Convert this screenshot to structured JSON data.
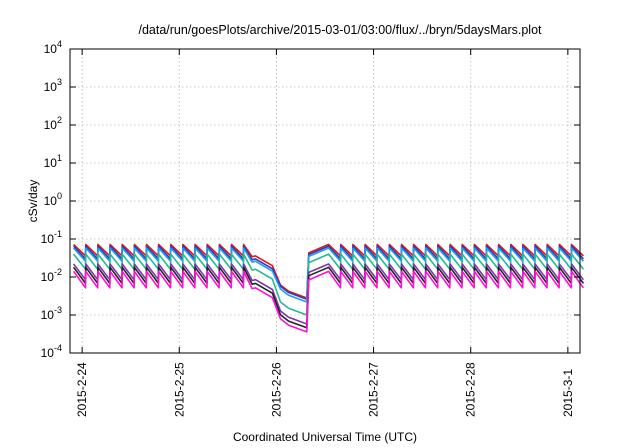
{
  "chart_data": {
    "type": "line",
    "title": "/data/run/goesPlots/archive/2015-03-01/03:00/flux/../bryn/5daysMars.plot",
    "xlabel": "Coordinated Universal Time (UTC)",
    "ylabel": "cSv/day",
    "yscale": "log",
    "ylim": [
      0.0001,
      10000
    ],
    "xlim": [
      "2015-02-23 21:00",
      "2015-03-01 03:00"
    ],
    "grid": true,
    "x_ticks": [
      {
        "label": "2015-2-24",
        "value": "2015-02-24"
      },
      {
        "label": "2015-2-25",
        "value": "2015-02-25"
      },
      {
        "label": "2015-2-26",
        "value": "2015-02-26"
      },
      {
        "label": "2015-2-27",
        "value": "2015-02-27"
      },
      {
        "label": "2015-2-28",
        "value": "2015-02-28"
      },
      {
        "label": "2015-3-1",
        "value": "2015-03-01"
      }
    ],
    "y_ticks": [
      {
        "base": "10",
        "exp": "-4",
        "value": 0.0001
      },
      {
        "base": "10",
        "exp": "-3",
        "value": 0.001
      },
      {
        "base": "10",
        "exp": "-2",
        "value": 0.01
      },
      {
        "base": "10",
        "exp": "-1",
        "value": 0.1
      },
      {
        "base": "10",
        "exp": "0",
        "value": 1
      },
      {
        "base": "10",
        "exp": "1",
        "value": 10
      },
      {
        "base": "10",
        "exp": "2",
        "value": 100
      },
      {
        "base": "10",
        "exp": "3",
        "value": 1000
      },
      {
        "base": "10",
        "exp": "4",
        "value": 10000
      }
    ],
    "series": [
      {
        "color": "#e8131b",
        "peak": 0.072,
        "trough": 0.036,
        "quiet_end": 0.0028
      },
      {
        "color": "#2b3fb5",
        "peak": 0.065,
        "trough": 0.03,
        "quiet_end": 0.0026
      },
      {
        "color": "#1e9bf0",
        "peak": 0.058,
        "trough": 0.026,
        "quiet_end": 0.0022
      },
      {
        "color": "#26b89a",
        "peak": 0.04,
        "trough": 0.016,
        "quiet_end": 0.001
      },
      {
        "color": "#7f33b3",
        "peak": 0.022,
        "trough": 0.0085,
        "quiet_end": 0.00058
      },
      {
        "color": "#242424",
        "peak": 0.018,
        "trough": 0.0068,
        "quiet_end": 0.00046
      },
      {
        "color": "#ff10d2",
        "peak": 0.014,
        "trough": 0.0052,
        "quiet_end": 0.00036
      }
    ]
  }
}
